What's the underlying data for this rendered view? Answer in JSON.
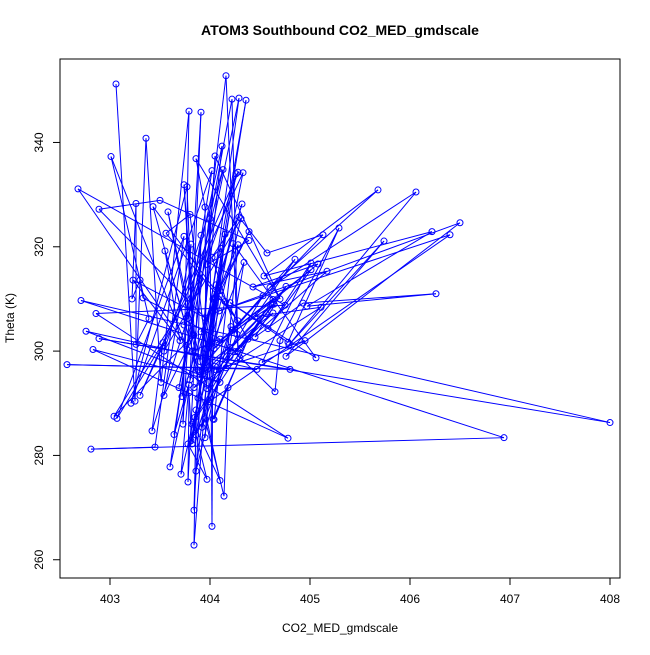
{
  "chart_data": {
    "type": "line",
    "title": "ATOM3 Southbound CO2_MED_gmdscale",
    "xlabel": "CO2_MED_gmdscale",
    "ylabel": "Theta (K)",
    "xlim": [
      402.5,
      408.1
    ],
    "ylim": [
      256.5,
      356.0
    ],
    "xticks": [
      403,
      404,
      405,
      406,
      407,
      408
    ],
    "yticks": [
      260,
      280,
      300,
      320,
      340
    ],
    "grid": false,
    "legend": "none",
    "series": [
      {
        "style": "points-and-lines",
        "color": "#0000FF",
        "points": [
          [
            403.06,
            351.2
          ],
          [
            403.25,
            290.4
          ],
          [
            403.36,
            340.8
          ],
          [
            403.51,
            294.0
          ],
          [
            403.79,
            346.0
          ],
          [
            403.73,
            286.0
          ],
          [
            403.91,
            345.8
          ],
          [
            403.8,
            294.5
          ],
          [
            404.16,
            352.8
          ],
          [
            404.28,
            300.0
          ],
          [
            404.22,
            348.3
          ],
          [
            403.69,
            293.0
          ],
          [
            404.29,
            348.5
          ],
          [
            403.88,
            291.0
          ],
          [
            404.36,
            348.1
          ],
          [
            403.9,
            298.0
          ],
          [
            404.12,
            339.3
          ],
          [
            403.74,
            305.0
          ],
          [
            404.28,
            334.3
          ],
          [
            403.3,
            291.5
          ],
          [
            404.33,
            334.2
          ],
          [
            403.85,
            287.3
          ],
          [
            404.26,
            334.0
          ],
          [
            403.94,
            296.2
          ],
          [
            404.31,
            325.4
          ],
          [
            403.54,
            300.0
          ],
          [
            404.13,
            334.8
          ],
          [
            403.78,
            306.3
          ],
          [
            404.02,
            334.6
          ],
          [
            403.21,
            290.0
          ],
          [
            403.77,
            331.5
          ],
          [
            403.83,
            303.0
          ],
          [
            403.74,
            331.9
          ],
          [
            403.86,
            299.0
          ],
          [
            403.58,
            326.7
          ],
          [
            403.92,
            296.3
          ],
          [
            404.05,
            337.4
          ],
          [
            404.7,
            310.0
          ],
          [
            403.86,
            336.9
          ],
          [
            403.95,
            327.6
          ],
          [
            403.96,
            300.4
          ],
          [
            403.8,
            326.2
          ],
          [
            403.56,
            322.6
          ],
          [
            404.28,
            305.8
          ],
          [
            403.43,
            327.7
          ],
          [
            403.88,
            296.4
          ],
          [
            403.55,
            319.2
          ],
          [
            403.7,
            302.0
          ],
          [
            403.23,
            313.6
          ],
          [
            403.95,
            306.4
          ],
          [
            402.89,
            327.2
          ],
          [
            403.5,
            328.9
          ],
          [
            404.39,
            321.2
          ],
          [
            403.97,
            316.6
          ],
          [
            404.29,
            325.7
          ],
          [
            404.57,
            318.8
          ],
          [
            405.13,
            322.3
          ],
          [
            404.04,
            300.5
          ],
          [
            405.08,
            316.7
          ],
          [
            404.43,
            312.3
          ],
          [
            405.17,
            315.3
          ],
          [
            404.25,
            299.9
          ],
          [
            404.56,
            307.2
          ],
          [
            403.82,
            286.0
          ],
          [
            404.2,
            299.0
          ],
          [
            403.99,
            290.3
          ],
          [
            406.4,
            322.3
          ],
          [
            404.09,
            307.7
          ],
          [
            406.5,
            324.6
          ],
          [
            404.76,
            299.0
          ],
          [
            405.74,
            321.1
          ],
          [
            404.79,
            301.2
          ],
          [
            406.06,
            330.5
          ],
          [
            404.6,
            312.2
          ],
          [
            405.68,
            330.9
          ],
          [
            404.54,
            314.4
          ],
          [
            406.22,
            322.9
          ],
          [
            404.97,
            308.6
          ],
          [
            406.26,
            311.0
          ],
          [
            404.93,
            309.2
          ],
          [
            404.45,
            302.7
          ],
          [
            404.76,
            312.4
          ],
          [
            404.31,
            300.6
          ],
          [
            404.63,
            309.9
          ],
          [
            404.06,
            301.5
          ],
          [
            404.64,
            309.0
          ],
          [
            403.97,
            292.8
          ],
          [
            404.53,
            310.6
          ],
          [
            403.89,
            296.2
          ],
          [
            404.63,
            307.3
          ],
          [
            404.06,
            296.4
          ],
          [
            404.95,
            302.0
          ],
          [
            404.52,
            297.8
          ],
          [
            405.01,
            316.9
          ],
          [
            404.58,
            304.3
          ],
          [
            405.01,
            315.6
          ],
          [
            404.22,
            304.0
          ],
          [
            404.85,
            317.6
          ],
          [
            404.45,
            306.6
          ],
          [
            405.11,
            308.4
          ],
          [
            403.84,
            293.0
          ],
          [
            404.62,
            308.9
          ],
          [
            403.89,
            294.9
          ],
          [
            404.34,
            317.0
          ],
          [
            404.16,
            296.8
          ],
          [
            404.28,
            320.4
          ],
          [
            403.91,
            303.7
          ],
          [
            404.39,
            322.9
          ],
          [
            404.05,
            310.2
          ],
          [
            404.15,
            309.5
          ],
          [
            403.81,
            282.8
          ],
          [
            404.08,
            311.6
          ],
          [
            403.86,
            283.9
          ],
          [
            404.21,
            304.7
          ],
          [
            403.86,
            277.0
          ],
          [
            404.15,
            322.4
          ],
          [
            403.95,
            283.4
          ],
          [
            404.06,
            312.7
          ],
          [
            403.82,
            282.2
          ],
          [
            403.79,
            292.0
          ],
          [
            403.78,
            274.9
          ],
          [
            403.91,
            322.2
          ],
          [
            403.84,
            269.5
          ],
          [
            404.0,
            325.4
          ],
          [
            404.02,
            266.4
          ],
          [
            404.03,
            310.0
          ],
          [
            403.84,
            262.8
          ],
          [
            403.86,
            288.7
          ],
          [
            403.71,
            276.4
          ],
          [
            403.79,
            293.5
          ],
          [
            403.6,
            277.8
          ],
          [
            403.77,
            300.3
          ],
          [
            403.64,
            284.0
          ],
          [
            404.32,
            328.2
          ],
          [
            403.72,
            291.3
          ],
          [
            403.81,
            320.5
          ],
          [
            403.54,
            291.5
          ],
          [
            403.84,
            303.1
          ],
          [
            403.04,
            287.5
          ],
          [
            403.9,
            313.8
          ],
          [
            403.42,
            284.7
          ],
          [
            403.53,
            301.6
          ],
          [
            403.07,
            287.1
          ],
          [
            403.74,
            322.0
          ],
          [
            403.45,
            281.6
          ],
          [
            402.81,
            281.2
          ],
          [
            406.94,
            283.4
          ],
          [
            402.71,
            309.7
          ],
          [
            408.0,
            286.3
          ],
          [
            402.89,
            302.4
          ],
          [
            404.8,
            296.5
          ],
          [
            402.57,
            297.4
          ],
          [
            404.47,
            296.5
          ],
          [
            402.76,
            303.8
          ],
          [
            404.1,
            294.0
          ],
          [
            402.83,
            300.3
          ],
          [
            404.78,
            283.3
          ],
          [
            402.86,
            307.2
          ],
          [
            404.75,
            308.8
          ],
          [
            402.68,
            331.1
          ],
          [
            403.76,
            301.1
          ],
          [
            403.01,
            337.3
          ],
          [
            403.39,
            306.2
          ],
          [
            403.26,
            301.3
          ],
          [
            403.26,
            328.3
          ],
          [
            403.22,
            310.0
          ],
          [
            403.3,
            313.6
          ],
          [
            403.33,
            310.2
          ],
          [
            404.1,
            302.3
          ],
          [
            403.82,
            300.0
          ],
          [
            404.1,
            275.2
          ],
          [
            403.83,
            286.3
          ],
          [
            403.97,
            275.4
          ],
          [
            403.78,
            282.2
          ],
          [
            403.95,
            287.0
          ],
          [
            404.14,
            272.2
          ],
          [
            404.18,
            293.0
          ],
          [
            404.03,
            287.0
          ],
          [
            404.3,
            298.7
          ],
          [
            404.2,
            300.7
          ],
          [
            404.65,
            292.2
          ],
          [
            404.7,
            302.0
          ],
          [
            405.29,
            323.6
          ],
          [
            404.78,
            301.7
          ],
          [
            404.2,
            309.3
          ],
          [
            405.06,
            298.7
          ],
          [
            404.23,
            320.6
          ],
          [
            404.04,
            286.9
          ],
          [
            404.38,
            302.3
          ],
          [
            404.1,
            311.6
          ],
          [
            404.11,
            319.7
          ],
          [
            404.02,
            318.0
          ],
          [
            404.27,
            303.2
          ],
          [
            403.92,
            285.4
          ],
          [
            404.05,
            297.1
          ]
        ]
      }
    ]
  }
}
